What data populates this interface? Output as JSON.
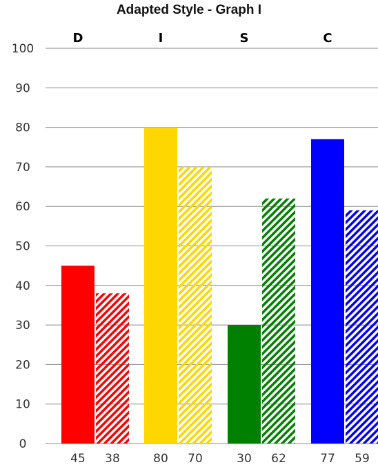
{
  "chart_data": {
    "type": "bar",
    "title": "Adapted Style - Graph I",
    "categories": [
      "D",
      "I",
      "S",
      "C"
    ],
    "ylim": [
      0,
      100
    ],
    "yticks": [
      0,
      10,
      20,
      30,
      40,
      50,
      60,
      70,
      80,
      90,
      100
    ],
    "grid": true,
    "series": [
      {
        "values": [
          45,
          80,
          30,
          77
        ],
        "style": "solid"
      },
      {
        "values": [
          38,
          70,
          62,
          59
        ],
        "style": "hatched"
      }
    ],
    "category_colors": [
      "#ff0000",
      "#ffd700",
      "#008000",
      "#0000ff"
    ],
    "value_labels": [
      "45",
      "38",
      "80",
      "70",
      "30",
      "62",
      "77",
      "59"
    ]
  }
}
